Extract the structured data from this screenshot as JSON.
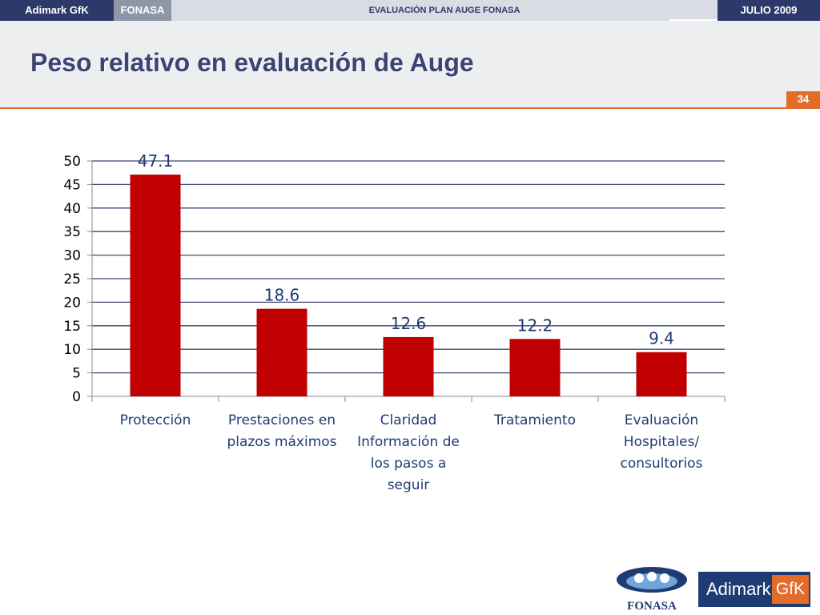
{
  "header": {
    "brand": "Adimark GfK",
    "client": "FONASA",
    "project": "EVALUACIÓN PLAN AUGE FONASA",
    "date": "JULIO 2009"
  },
  "slide": {
    "title": "Peso relativo en evaluación de Auge",
    "page_number": "34"
  },
  "chart_data": {
    "type": "bar",
    "categories": [
      "Protección",
      "Prestaciones en plazos máximos",
      "Claridad Información de los pasos a seguir",
      "Tratamiento",
      "Evaluación Hospitales/ consultorios"
    ],
    "category_lines": [
      [
        "Protección"
      ],
      [
        "Prestaciones en",
        "plazos máximos"
      ],
      [
        "Claridad",
        "Información de",
        "los pasos a",
        "seguir"
      ],
      [
        "Tratamiento"
      ],
      [
        "Evaluación",
        "Hospitales/",
        "consultorios"
      ]
    ],
    "values": [
      47.1,
      18.6,
      12.6,
      12.2,
      9.4
    ],
    "value_labels": [
      "47.1",
      "18.6",
      "12.6",
      "12.2",
      "9.4"
    ],
    "yticks": [
      "0",
      "5",
      "10",
      "15",
      "20",
      "25",
      "30",
      "35",
      "40",
      "45",
      "50"
    ],
    "ylim": [
      0,
      50
    ],
    "grid": true,
    "legend": "none",
    "bar_color": "#c00000",
    "grid_color": "#3d4474",
    "label_color": "#1f3b73"
  },
  "logos": {
    "fonasa": "FONASA",
    "adimark_word": "Adimark",
    "adimark_gfk": "GfK"
  }
}
